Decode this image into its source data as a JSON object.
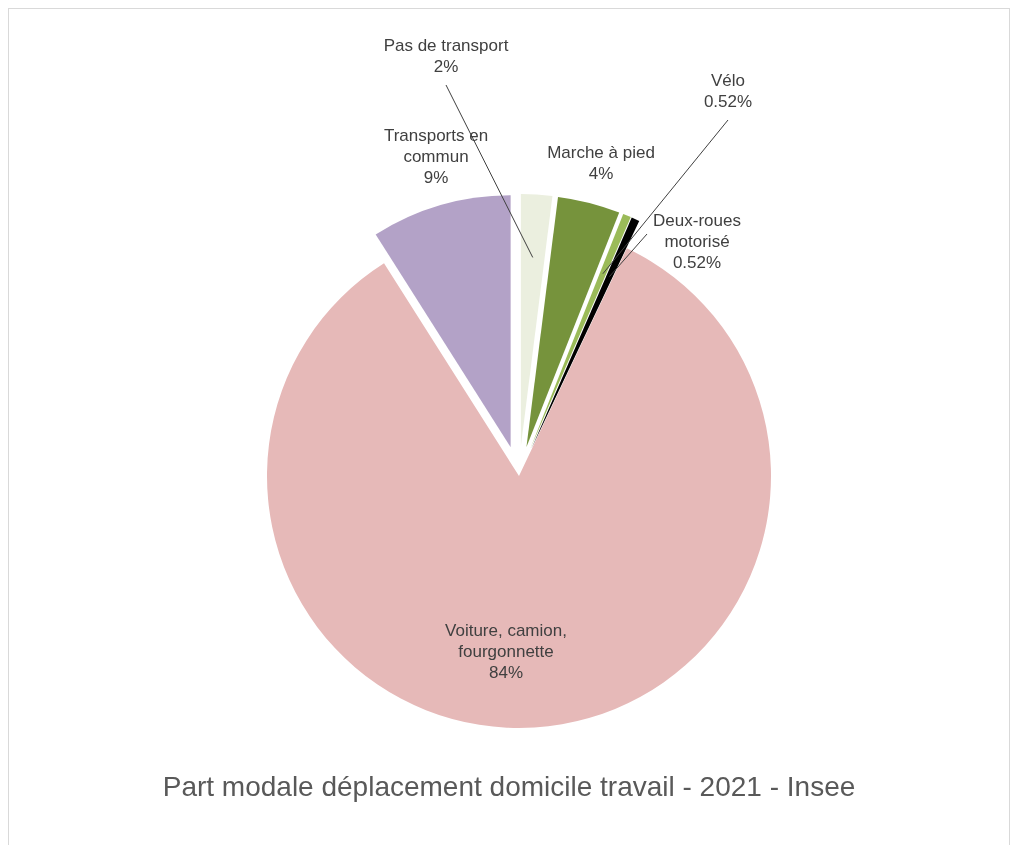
{
  "chart_data": {
    "type": "pie",
    "title": "Part modale déplacement domicile travail - 2021 - Insee",
    "categories": [
      "Pas de transport",
      "Marche à pied",
      "Vélo",
      "Deux-roues motorisé",
      "Voiture, camion, fourgonnette",
      "Transports en commun"
    ],
    "values": [
      2,
      4,
      0.52,
      0.52,
      84,
      9
    ],
    "colors": [
      "#ebefdf",
      "#76933c",
      "#9bbb59",
      "#000000",
      "#e6b9b8",
      "#b3a2c7"
    ],
    "value_labels": [
      "2%",
      "4%",
      "0.52%",
      "0.52%",
      "84%",
      "9%"
    ]
  }
}
